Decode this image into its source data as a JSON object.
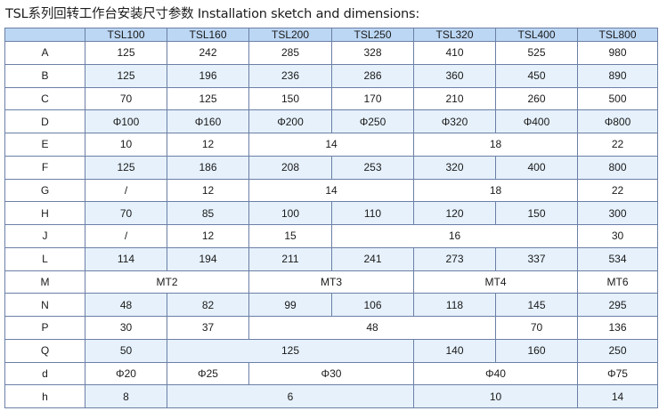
{
  "title": "TSL系列回转工作台安装尺寸参数 Installation sketch and dimensions:",
  "table": {
    "columns": [
      "",
      "TSL100",
      "TSL160",
      "TSL200",
      "TSL250",
      "TSL320",
      "TSL400",
      "TSL800"
    ],
    "rows": [
      {
        "label": "A",
        "cells": [
          {
            "v": "125",
            "span": 1
          },
          {
            "v": "242",
            "span": 1
          },
          {
            "v": "285",
            "span": 1
          },
          {
            "v": "328",
            "span": 1
          },
          {
            "v": "410",
            "span": 1
          },
          {
            "v": "525",
            "span": 1
          },
          {
            "v": "980",
            "span": 1
          }
        ]
      },
      {
        "label": "B",
        "cells": [
          {
            "v": "125",
            "span": 1
          },
          {
            "v": "196",
            "span": 1
          },
          {
            "v": "236",
            "span": 1
          },
          {
            "v": "286",
            "span": 1
          },
          {
            "v": "360",
            "span": 1
          },
          {
            "v": "450",
            "span": 1
          },
          {
            "v": "890",
            "span": 1
          }
        ]
      },
      {
        "label": "C",
        "cells": [
          {
            "v": "70",
            "span": 1
          },
          {
            "v": "125",
            "span": 1
          },
          {
            "v": "150",
            "span": 1
          },
          {
            "v": "170",
            "span": 1
          },
          {
            "v": "210",
            "span": 1
          },
          {
            "v": "260",
            "span": 1
          },
          {
            "v": "500",
            "span": 1
          }
        ]
      },
      {
        "label": "D",
        "cells": [
          {
            "v": "Φ100",
            "span": 1
          },
          {
            "v": "Φ160",
            "span": 1
          },
          {
            "v": "Φ200",
            "span": 1
          },
          {
            "v": "Φ250",
            "span": 1
          },
          {
            "v": "Φ320",
            "span": 1
          },
          {
            "v": "Φ400",
            "span": 1
          },
          {
            "v": "Φ800",
            "span": 1
          }
        ]
      },
      {
        "label": "E",
        "cells": [
          {
            "v": "10",
            "span": 1
          },
          {
            "v": "12",
            "span": 1
          },
          {
            "v": "14",
            "span": 2
          },
          {
            "v": "18",
            "span": 2
          },
          {
            "v": "22",
            "span": 1
          }
        ]
      },
      {
        "label": "F",
        "cells": [
          {
            "v": "125",
            "span": 1
          },
          {
            "v": "186",
            "span": 1
          },
          {
            "v": "208",
            "span": 1
          },
          {
            "v": "253",
            "span": 1
          },
          {
            "v": "320",
            "span": 1
          },
          {
            "v": "400",
            "span": 1
          },
          {
            "v": "800",
            "span": 1
          }
        ]
      },
      {
        "label": "G",
        "cells": [
          {
            "v": "/",
            "span": 1
          },
          {
            "v": "12",
            "span": 1
          },
          {
            "v": "14",
            "span": 2
          },
          {
            "v": "18",
            "span": 2
          },
          {
            "v": "22",
            "span": 1
          }
        ]
      },
      {
        "label": "H",
        "cells": [
          {
            "v": "70",
            "span": 1
          },
          {
            "v": "85",
            "span": 1
          },
          {
            "v": "100",
            "span": 1
          },
          {
            "v": "110",
            "span": 1
          },
          {
            "v": "120",
            "span": 1
          },
          {
            "v": "150",
            "span": 1
          },
          {
            "v": "300",
            "span": 1
          }
        ]
      },
      {
        "label": "J",
        "cells": [
          {
            "v": "/",
            "span": 1
          },
          {
            "v": "12",
            "span": 1
          },
          {
            "v": "15",
            "span": 1
          },
          {
            "v": "16",
            "span": 3
          },
          {
            "v": "30",
            "span": 1
          }
        ]
      },
      {
        "label": "L",
        "cells": [
          {
            "v": "114",
            "span": 1
          },
          {
            "v": "194",
            "span": 1
          },
          {
            "v": "211",
            "span": 1
          },
          {
            "v": "241",
            "span": 1
          },
          {
            "v": "273",
            "span": 1
          },
          {
            "v": "337",
            "span": 1
          },
          {
            "v": "534",
            "span": 1
          }
        ]
      },
      {
        "label": "M",
        "cells": [
          {
            "v": "MT2",
            "span": 2
          },
          {
            "v": "MT3",
            "span": 2
          },
          {
            "v": "MT4",
            "span": 2
          },
          {
            "v": "MT6",
            "span": 1
          }
        ]
      },
      {
        "label": "N",
        "cells": [
          {
            "v": "48",
            "span": 1
          },
          {
            "v": "82",
            "span": 1
          },
          {
            "v": "99",
            "span": 1
          },
          {
            "v": "106",
            "span": 1
          },
          {
            "v": "118",
            "span": 1
          },
          {
            "v": "145",
            "span": 1
          },
          {
            "v": "295",
            "span": 1
          }
        ]
      },
      {
        "label": "P",
        "cells": [
          {
            "v": "30",
            "span": 1
          },
          {
            "v": "37",
            "span": 1
          },
          {
            "v": "48",
            "span": 3
          },
          {
            "v": "70",
            "span": 1
          },
          {
            "v": "136",
            "span": 1
          }
        ]
      },
      {
        "label": "Q",
        "cells": [
          {
            "v": "50",
            "span": 1
          },
          {
            "v": "125",
            "span": 3
          },
          {
            "v": "140",
            "span": 1
          },
          {
            "v": "160",
            "span": 1
          },
          {
            "v": "250",
            "span": 1
          }
        ]
      },
      {
        "label": "d",
        "cells": [
          {
            "v": "Φ20",
            "span": 1
          },
          {
            "v": "Φ25",
            "span": 1
          },
          {
            "v": "Φ30",
            "span": 2
          },
          {
            "v": "Φ40",
            "span": 2
          },
          {
            "v": "Φ75",
            "span": 1
          }
        ]
      },
      {
        "label": "h",
        "cells": [
          {
            "v": "8",
            "span": 1
          },
          {
            "v": "6",
            "span": 3
          },
          {
            "v": "10",
            "span": 2
          },
          {
            "v": "14",
            "span": 1
          }
        ]
      }
    ]
  }
}
